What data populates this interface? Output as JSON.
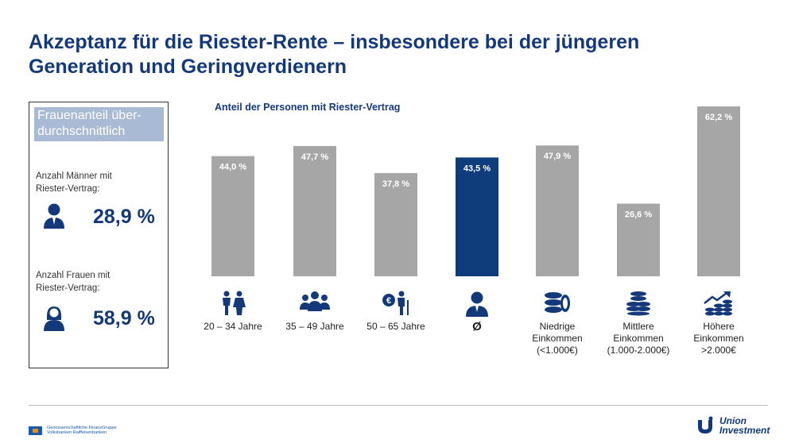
{
  "title": {
    "line1": "Akzeptanz für die Riester-Rente – insbesondere bei der jüngeren",
    "line2": "Generation und Geringverdienern"
  },
  "sidebar": {
    "header": "Frauenanteil über-durchschnittlich",
    "men_label_1": "Anzahl Männer mit",
    "men_label_2": "Riester-Vertrag:",
    "men_value": "28,9 %",
    "women_label_1": "Anzahl Frauen mit",
    "women_label_2": "Riester-Vertrag:",
    "women_value": "58,9 %"
  },
  "chart_data": {
    "type": "bar",
    "title": "Anteil der Personen mit Riester-Vertrag",
    "xlabel": "",
    "ylabel": "",
    "ylim": [
      0,
      65
    ],
    "grid": false,
    "categories": [
      "20 – 34 Jahre",
      "35 – 49 Jahre",
      "50 – 65 Jahre",
      "Ø",
      "Niedrige Einkommen (<1.000€)",
      "Mittlere Einkommen (1.000-2.000€)",
      "Höhere Einkommen >2.000€"
    ],
    "values": [
      44.0,
      47.7,
      37.8,
      43.5,
      47.9,
      26.6,
      62.2
    ],
    "value_labels": [
      "44,0 %",
      "47,7 %",
      "37,8 %",
      "43,5 %",
      "47,9 %",
      "26,6 %",
      "62,2 %"
    ],
    "colors": [
      "#a6a6a6",
      "#a6a6a6",
      "#a6a6a6",
      "#0f3c7a",
      "#a6a6a6",
      "#a6a6a6",
      "#a6a6a6"
    ],
    "icons": [
      "couple-icon",
      "group-icon",
      "seniors-icon",
      "person-icon",
      "coins-few-icon",
      "coins-stack-icon",
      "coins-growth-icon"
    ]
  },
  "category_labels": [
    [
      "20 – 34 Jahre"
    ],
    [
      "35 – 49 Jahre"
    ],
    [
      "50 – 65 Jahre"
    ],
    [
      "Ø"
    ],
    [
      "Niedrige",
      "Einkommen",
      "(<1.000€)"
    ],
    [
      "Mittlere",
      "Einkommen",
      "(1.000-2.000€)"
    ],
    [
      "Höhere",
      "Einkommen",
      ">2.000€"
    ]
  ],
  "colors": {
    "title": "#14397a",
    "bar_default": "#a6a6a6",
    "bar_highlight": "#0f3c7a",
    "sidebar_header_bg": "#a9bad4"
  },
  "footer": {
    "left_logo_line1": "Genossenschaftliche FinanzGruppe",
    "left_logo_line2": "Volksbanken Raiffeisenbanken",
    "right_logo_line1": "Union",
    "right_logo_line2": "Investment"
  }
}
